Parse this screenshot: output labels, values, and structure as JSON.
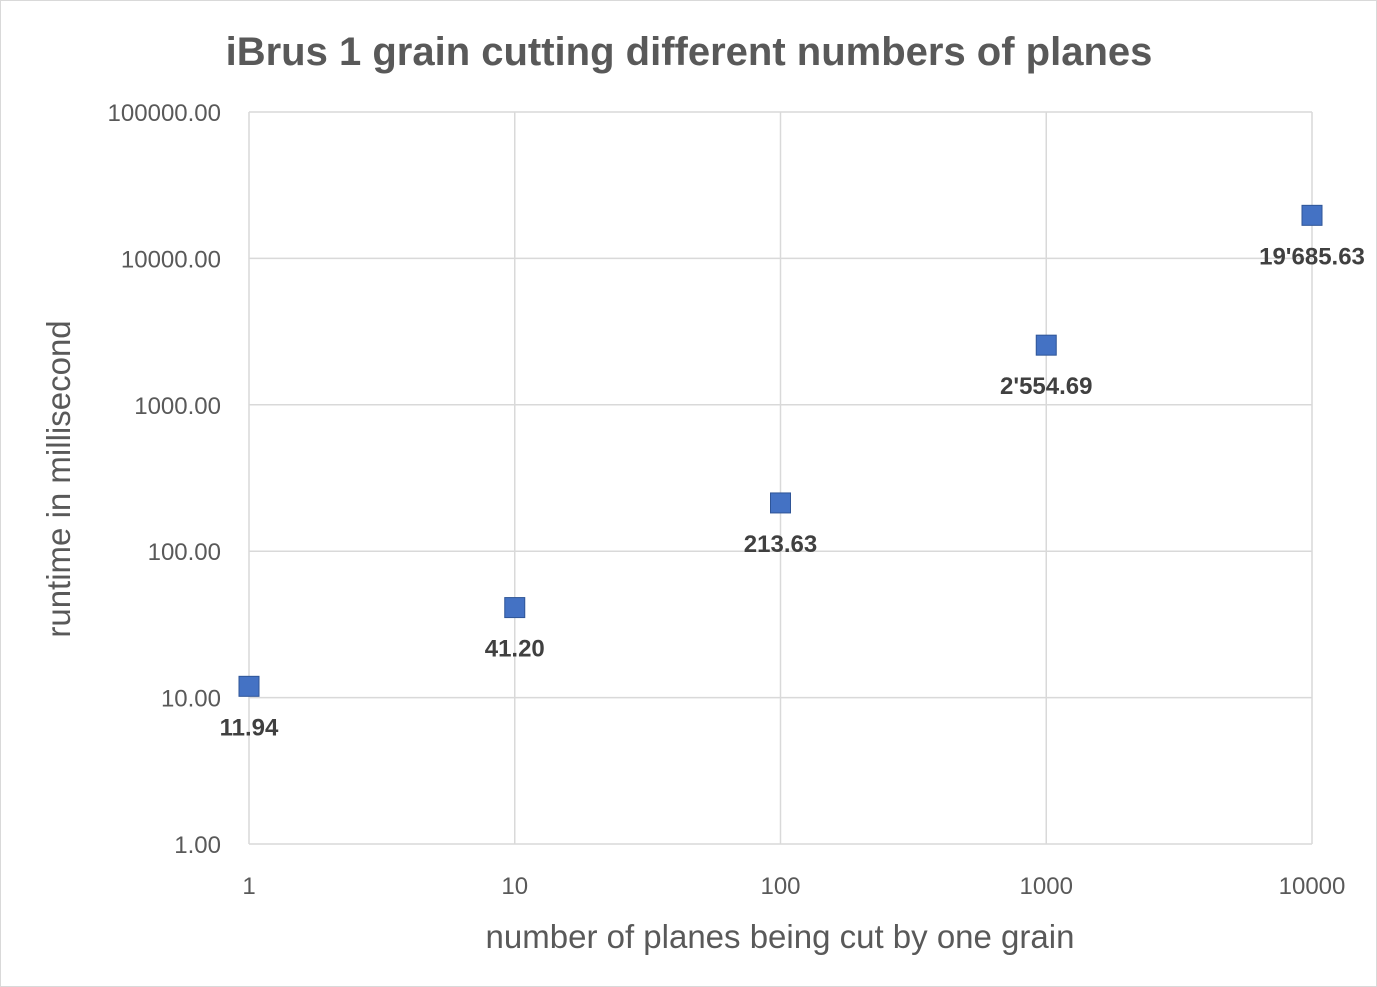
{
  "chart_data": {
    "type": "scatter",
    "title": "iBrus 1 grain cutting different numbers of planes",
    "xlabel": "number of planes being cut by one grain",
    "ylabel": "runtime in millisecond",
    "x_scale": "log",
    "y_scale": "log",
    "xlim": [
      1,
      10000
    ],
    "ylim": [
      1,
      100000
    ],
    "x_ticks": [
      "1",
      "10",
      "100",
      "1000",
      "10000"
    ],
    "y_ticks": [
      "1.00",
      "10.00",
      "100.00",
      "1000.00",
      "10000.00",
      "100000.00"
    ],
    "grid": true,
    "legend": "none",
    "series": [
      {
        "marker": "square",
        "color": "#4472C4",
        "x": [
          1,
          10,
          100,
          1000,
          10000
        ],
        "y": [
          11.94,
          41.2,
          213.63,
          2554.69,
          19685.63
        ],
        "labels": [
          "11.94",
          "41.20",
          "213.63",
          "2'554.69",
          "19'685.63"
        ]
      }
    ]
  }
}
